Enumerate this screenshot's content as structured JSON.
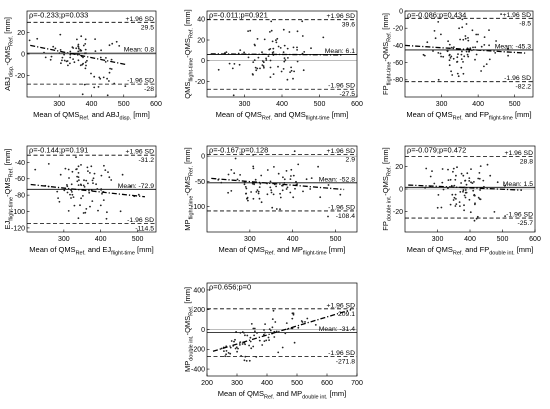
{
  "chart_data": [
    {
      "type": "scatter",
      "stats": "ρ=-0.233;p=0.033",
      "ylabel": {
        "main": "ABJ",
        "sub": "disp.",
        "main2": "-QMS",
        "sub2": "Ref.",
        "unit": " [mm]"
      },
      "xlabel": {
        "main": "Mean of QMS",
        "sub": "Ref.",
        "main2": " and ABJ",
        "sub2": "disp.",
        "unit": " [mm]"
      },
      "xlim": [
        200,
        600
      ],
      "ylim": [
        -40,
        40
      ],
      "xticks": [
        300,
        400,
        500,
        600
      ],
      "yticks": [
        -20,
        0,
        20
      ],
      "upper_sd": {
        "value": 29.5,
        "label": "+1.96 SD",
        "value_label": "29.5"
      },
      "mean": {
        "value": 0.8,
        "label": "Mean: 0.8"
      },
      "lower_sd": {
        "value": -28,
        "label": "-1.96 SD",
        "value_label": "-28"
      },
      "regression": {
        "x": [
          210,
          510
        ],
        "y": [
          8,
          -10
        ]
      },
      "n_points": 85,
      "x_center": 370,
      "x_spread": 55,
      "y_spread": 12.5
    },
    {
      "type": "scatter",
      "stats": "ρ=-0.011;p=0.921",
      "ylabel": {
        "main": "QMS",
        "sub": "flight-time",
        "main2": "-QMS",
        "sub2": "Ref.",
        "unit": " [mm]"
      },
      "xlabel": {
        "main": "Mean of QMS",
        "sub": "Ref.",
        "main2": " and QMS",
        "sub2": "flight-time",
        "unit": " [mm]"
      },
      "xlim": [
        200,
        600
      ],
      "ylim": [
        -35,
        48
      ],
      "xticks": [
        300,
        400,
        500,
        600
      ],
      "yticks": [
        -20,
        0,
        20,
        40
      ],
      "upper_sd": {
        "value": 39.6,
        "label": "+1.96 SD",
        "value_label": "39.6"
      },
      "mean": {
        "value": 6.1,
        "label": "Mean: 6.1"
      },
      "lower_sd": {
        "value": -27.5,
        "label": "-1.96 SD",
        "value_label": "-27.5"
      },
      "regression": {
        "x": [
          210,
          560
        ],
        "y": [
          6.6,
          5.6
        ]
      },
      "n_points": 85,
      "x_center": 370,
      "x_spread": 55,
      "y_spread": 15
    },
    {
      "type": "scatter",
      "stats": "ρ=-0.086;p=0.434",
      "ylabel": {
        "main": "FP",
        "sub": "flight-time",
        "main2": "-QMS",
        "sub2": "Ref.",
        "unit": " [mm]"
      },
      "xlabel": {
        "main": "Mean of QMS",
        "sub": "Ref.",
        "main2": " and FP",
        "sub2": "flight-time",
        "unit": " [mm]"
      },
      "xlim": [
        200,
        550
      ],
      "ylim": [
        -100,
        0
      ],
      "xticks": [
        300,
        400,
        500
      ],
      "yticks": [
        -80,
        -60,
        -40,
        -20,
        0
      ],
      "upper_sd": {
        "value": -8.5,
        "label": "+1.96 SD",
        "value_label": "-8.5"
      },
      "mean": {
        "value": -45.3,
        "label": "Mean: -45.3"
      },
      "lower_sd": {
        "value": -82.2,
        "label": "-1.96 SD",
        "value_label": "-82.2"
      },
      "regression": {
        "x": [
          200,
          530
        ],
        "y": [
          -40,
          -49
        ]
      },
      "n_points": 85,
      "x_center": 360,
      "x_spread": 55,
      "y_spread": 17
    },
    {
      "type": "scatter",
      "stats": "ρ=-0.144;p=0.191",
      "ylabel": {
        "main": "EJ",
        "sub": "flight-time",
        "main2": "-QMS",
        "sub2": "Ref.",
        "unit": " [mm]"
      },
      "xlabel": {
        "main": "Mean of QMS",
        "sub": "Ref.",
        "main2": " and EJ",
        "sub2": "flight-time",
        "unit": " [mm]"
      },
      "xlim": [
        200,
        550
      ],
      "ylim": [
        -125,
        -20
      ],
      "xticks": [
        300,
        400,
        500
      ],
      "yticks": [
        -120,
        -100,
        -80,
        -60,
        -40
      ],
      "upper_sd": {
        "value": -31.2,
        "label": "+1.96 SD",
        "value_label": "-31.2"
      },
      "mean": {
        "value": -72.9,
        "label": "Mean: -72.9"
      },
      "lower_sd": {
        "value": -114.5,
        "label": "-1.96 SD",
        "value_label": "-114.5"
      },
      "regression": {
        "x": [
          210,
          520
        ],
        "y": [
          -67,
          -82
        ]
      },
      "n_points": 85,
      "x_center": 350,
      "x_spread": 55,
      "y_spread": 19
    },
    {
      "type": "scatter",
      "stats": "ρ=-0.167;p=0.128",
      "ylabel": {
        "main": "MP",
        "sub": "flight-time",
        "main2": "-QMS",
        "sub2": "Ref.",
        "unit": " [mm]"
      },
      "xlabel": {
        "main": "Mean of QMS",
        "sub": "Ref.",
        "main2": " and MP",
        "sub2": "flight-time",
        "unit": " [mm]"
      },
      "xlim": [
        200,
        550
      ],
      "ylim": [
        -150,
        20
      ],
      "xticks": [
        300,
        400,
        500
      ],
      "yticks": [
        -100,
        -50,
        0
      ],
      "upper_sd": {
        "value": 2.9,
        "label": "+1.96 SD",
        "value_label": "2.9"
      },
      "mean": {
        "value": -52.8,
        "label": "Mean: -52.8"
      },
      "lower_sd": {
        "value": -108.4,
        "label": "-1.96 SD",
        "value_label": "-108.4"
      },
      "regression": {
        "x": [
          210,
          520
        ],
        "y": [
          -44,
          -66
        ]
      },
      "n_points": 85,
      "x_center": 350,
      "x_spread": 55,
      "y_spread": 26
    },
    {
      "type": "scatter",
      "stats": "ρ=-0.079;p=0.472",
      "ylabel": {
        "main": "FP",
        "sub": "double int.",
        "main2": "-QMS",
        "sub2": "Ref.",
        "unit": " [mm]"
      },
      "xlabel": {
        "main": "Mean of QMS",
        "sub": "Ref.",
        "main2": " and FP",
        "sub2": "double int.",
        "unit": " [mm]"
      },
      "xlim": [
        200,
        600
      ],
      "ylim": [
        -38,
        38
      ],
      "xticks": [
        300,
        400,
        500,
        600
      ],
      "yticks": [
        -20,
        0,
        20
      ],
      "upper_sd": {
        "value": 28.8,
        "label": "+1.96 SD",
        "value_label": "28.8"
      },
      "mean": {
        "value": 1.5,
        "label": "Mean: 1.5"
      },
      "lower_sd": {
        "value": -25.7,
        "label": "-1.96 SD",
        "value_label": "-25.7"
      },
      "regression": {
        "x": [
          210,
          560
        ],
        "y": [
          3.5,
          -1
        ]
      },
      "n_points": 85,
      "x_center": 370,
      "x_spread": 55,
      "y_spread": 12.5
    },
    {
      "type": "scatter",
      "stats": "ρ=0.656;p=0",
      "ylabel": {
        "main": "MP",
        "sub": "double int.",
        "main2": "-QMS",
        "sub2": "Ref.",
        "unit": " [mm]"
      },
      "xlabel": {
        "main": "Mean of QMS",
        "sub": "Ref.",
        "main2": " and MP",
        "sub2": "double int.",
        "unit": " [mm]"
      },
      "xlim": [
        200,
        700
      ],
      "ylim": [
        -470,
        470
      ],
      "xticks": [
        200,
        300,
        400,
        500,
        600,
        700
      ],
      "yticks": [
        -400,
        -200,
        0,
        200,
        400
      ],
      "upper_sd": {
        "value": 209.1,
        "label": "+1.96 SD",
        "value_label": "209.1"
      },
      "mean": {
        "value": -31.4,
        "label": "Mean: -31.4"
      },
      "lower_sd": {
        "value": -271.8,
        "label": "-1.96 SD",
        "value_label": "-271.8"
      },
      "regression": {
        "x": [
          220,
          680
        ],
        "y": [
          -220,
          200
        ]
      },
      "n_points": 85,
      "x_center": 380,
      "x_spread": 80,
      "y_spread": 90
    }
  ]
}
